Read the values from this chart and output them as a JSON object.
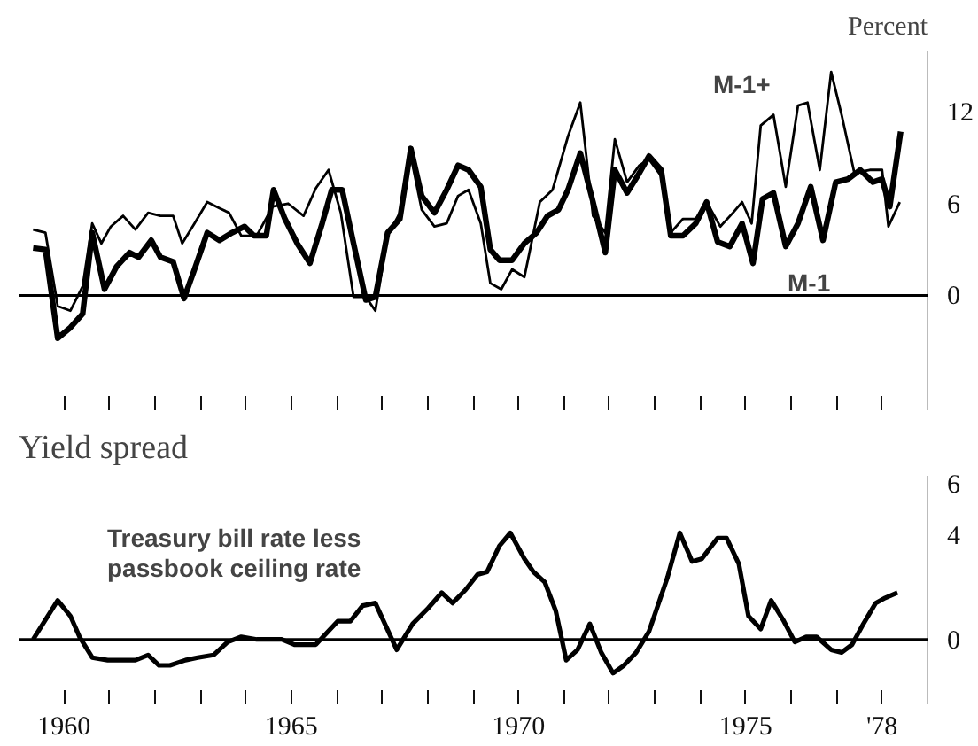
{
  "chart_data": [
    {
      "type": "line",
      "ylabel": "Percent",
      "tick_labels": "y",
      "xlim": [
        1959,
        1979
      ],
      "ylim": [
        -7.5,
        16
      ],
      "xticks": [
        {
          "value": 1960,
          "label": null
        },
        {
          "value": 1961,
          "label": null
        },
        {
          "value": 1962,
          "label": null
        },
        {
          "value": 1963,
          "label": null
        },
        {
          "value": 1964,
          "label": null
        },
        {
          "value": 1965,
          "label": null
        },
        {
          "value": 1966,
          "label": null
        },
        {
          "value": 1967,
          "label": null
        },
        {
          "value": 1968,
          "label": null
        },
        {
          "value": 1969,
          "label": null
        },
        {
          "value": 1970,
          "label": null
        },
        {
          "value": 1971,
          "label": null
        },
        {
          "value": 1972,
          "label": null
        },
        {
          "value": 1973,
          "label": null
        },
        {
          "value": 1974,
          "label": null
        },
        {
          "value": 1975,
          "label": null
        },
        {
          "value": 1976,
          "label": null
        },
        {
          "value": 1977,
          "label": null
        },
        {
          "value": 1978,
          "label": null
        }
      ],
      "yticks": [
        0,
        6,
        12
      ],
      "ref_lines": [
        {
          "axis": "y",
          "value": 0
        }
      ],
      "annotations": [
        "M-1+",
        "M-1"
      ],
      "series": [
        {
          "color": "#000000",
          "x": [
            1959.32,
            1959.59,
            1959.86,
            1960.14,
            1960.41,
            1960.62,
            1960.82,
            1961.03,
            1961.3,
            1961.57,
            1961.85,
            1962.12,
            1962.4,
            1962.6,
            1962.87,
            1963.15,
            1963.42,
            1963.63,
            1963.9,
            1964.24,
            1964.59,
            1964.93,
            1965.27,
            1965.54,
            1965.82,
            1966.09,
            1966.37,
            1966.64,
            1966.85,
            1967.12,
            1967.39,
            1967.63,
            1967.87,
            1968.15,
            1968.42,
            1968.67,
            1968.9,
            1969.17,
            1969.38,
            1969.62,
            1969.86,
            1970.13,
            1970.47,
            1970.75,
            1971.09,
            1971.36,
            1971.64,
            1971.91,
            1972.12,
            1972.39,
            1972.66,
            1972.87,
            1973.14,
            1973.35,
            1973.62,
            1973.9,
            1974.14,
            1974.44,
            1974.72,
            1974.92,
            1975.13,
            1975.33,
            1975.61,
            1975.88,
            1976.15,
            1976.36,
            1976.63,
            1976.88,
            1977.11,
            1977.39,
            1977.73,
            1978.0,
            1978.14,
            1978.39
          ],
          "values": [
            4.3,
            4.1,
            -0.7,
            -1.0,
            0.6,
            4.7,
            3.4,
            4.5,
            5.2,
            4.3,
            5.4,
            5.2,
            5.2,
            3.4,
            4.7,
            6.1,
            5.7,
            5.4,
            3.9,
            3.9,
            5.8,
            6.0,
            5.2,
            7.0,
            8.2,
            5.4,
            -0.1,
            -0.1,
            -1.0,
            3.9,
            5.4,
            9.1,
            5.6,
            4.5,
            4.7,
            6.5,
            6.9,
            4.7,
            0.8,
            0.4,
            1.7,
            1.2,
            6.1,
            6.9,
            10.4,
            12.6,
            5.2,
            4.1,
            10.2,
            7.4,
            8.5,
            8.9,
            7.8,
            4.1,
            5.0,
            5.0,
            6.1,
            4.5,
            5.4,
            6.1,
            4.7,
            11.1,
            11.8,
            7.1,
            12.4,
            12.6,
            8.2,
            14.6,
            11.8,
            8.0,
            8.2,
            8.2,
            4.5,
            6.1
          ]
        },
        {
          "color": "#000000",
          "x": [
            1959.32,
            1959.59,
            1959.86,
            1960.14,
            1960.41,
            1960.62,
            1960.89,
            1961.16,
            1961.44,
            1961.64,
            1961.92,
            1962.12,
            1962.4,
            1962.64,
            1962.87,
            1963.15,
            1963.42,
            1963.7,
            1963.97,
            1964.18,
            1964.45,
            1964.61,
            1964.86,
            1965.13,
            1965.41,
            1965.68,
            1965.89,
            1966.12,
            1966.37,
            1966.64,
            1966.85,
            1967.12,
            1967.39,
            1967.63,
            1967.87,
            1968.15,
            1968.42,
            1968.67,
            1968.9,
            1969.17,
            1969.38,
            1969.58,
            1969.86,
            1970.13,
            1970.4,
            1970.64,
            1970.88,
            1971.09,
            1971.36,
            1971.64,
            1971.91,
            1972.12,
            1972.39,
            1972.66,
            1972.87,
            1973.14,
            1973.35,
            1973.62,
            1973.9,
            1974.14,
            1974.38,
            1974.65,
            1974.92,
            1975.16,
            1975.37,
            1975.61,
            1975.88,
            1976.15,
            1976.43,
            1976.7,
            1976.98,
            1977.25,
            1977.52,
            1977.8,
            1978.0,
            1978.17,
            1978.41
          ],
          "values": [
            3.1,
            3.0,
            -2.8,
            -2.1,
            -1.2,
            4.1,
            0.4,
            1.9,
            2.8,
            2.5,
            3.6,
            2.5,
            2.2,
            -0.2,
            1.7,
            4.1,
            3.6,
            4.1,
            4.5,
            3.9,
            3.9,
            6.9,
            5.0,
            3.4,
            2.1,
            4.7,
            6.9,
            6.9,
            3.4,
            -0.3,
            -0.1,
            4.1,
            5.0,
            9.6,
            6.5,
            5.4,
            6.9,
            8.5,
            8.2,
            7.1,
            3.0,
            2.3,
            2.3,
            3.4,
            4.1,
            5.2,
            5.6,
            6.9,
            9.3,
            6.1,
            2.8,
            8.2,
            6.7,
            8.0,
            9.1,
            8.2,
            3.9,
            3.9,
            4.7,
            6.1,
            3.5,
            3.2,
            4.7,
            2.1,
            6.3,
            6.7,
            3.2,
            4.7,
            7.1,
            3.6,
            7.4,
            7.6,
            8.2,
            7.4,
            7.6,
            5.8,
            10.7
          ]
        }
      ]
    },
    {
      "type": "line",
      "title": "Yield spread",
      "xlim": [
        1959,
        1979
      ],
      "ylim": [
        -2.5,
        6.3
      ],
      "xticks": [
        {
          "value": 1960,
          "label": "1960"
        },
        {
          "value": 1961,
          "label": null
        },
        {
          "value": 1962,
          "label": null
        },
        {
          "value": 1963,
          "label": null
        },
        {
          "value": 1964,
          "label": null
        },
        {
          "value": 1965,
          "label": "1965"
        },
        {
          "value": 1966,
          "label": null
        },
        {
          "value": 1967,
          "label": null
        },
        {
          "value": 1968,
          "label": null
        },
        {
          "value": 1969,
          "label": null
        },
        {
          "value": 1970,
          "label": "1970"
        },
        {
          "value": 1971,
          "label": null
        },
        {
          "value": 1972,
          "label": null
        },
        {
          "value": 1973,
          "label": null
        },
        {
          "value": 1974,
          "label": null
        },
        {
          "value": 1975,
          "label": "1975"
        },
        {
          "value": 1976,
          "label": null
        },
        {
          "value": 1977,
          "label": null
        },
        {
          "value": 1978,
          "label": "'78"
        }
      ],
      "yticks": [
        0,
        4,
        6
      ],
      "ref_lines": [
        {
          "axis": "y",
          "value": 0
        }
      ],
      "annotations": [
        "Treasury bill rate less\npassbook ceiling rate"
      ],
      "series": [
        {
          "color": "#000000",
          "x": [
            1959.32,
            1959.86,
            1960.14,
            1960.34,
            1960.62,
            1960.96,
            1961.3,
            1961.57,
            1961.85,
            1962.09,
            1962.33,
            1962.67,
            1962.94,
            1963.29,
            1963.6,
            1963.9,
            1964.24,
            1964.79,
            1965.07,
            1965.54,
            1966.02,
            1966.3,
            1966.57,
            1966.85,
            1967.32,
            1967.67,
            1968.01,
            1968.31,
            1968.55,
            1968.83,
            1969.1,
            1969.31,
            1969.58,
            1969.82,
            1970.13,
            1970.33,
            1970.58,
            1970.82,
            1971.05,
            1971.3,
            1971.57,
            1971.82,
            1972.08,
            1972.32,
            1972.59,
            1972.87,
            1973.28,
            1973.55,
            1973.82,
            1974.03,
            1974.38,
            1974.58,
            1974.85,
            1975.06,
            1975.33,
            1975.56,
            1975.84,
            1976.08,
            1976.33,
            1976.56,
            1976.88,
            1977.11,
            1977.34,
            1977.59,
            1977.86,
            1978.07,
            1978.34
          ],
          "values": [
            0.0,
            1.5,
            0.9,
            0.1,
            -0.7,
            -0.8,
            -0.8,
            -0.8,
            -0.6,
            -1.0,
            -1.0,
            -0.8,
            -0.7,
            -0.6,
            -0.1,
            0.1,
            0.0,
            0.0,
            -0.2,
            -0.2,
            0.7,
            0.7,
            1.3,
            1.4,
            -0.4,
            0.6,
            1.2,
            1.8,
            1.4,
            1.9,
            2.5,
            2.6,
            3.6,
            4.1,
            3.1,
            2.6,
            2.2,
            1.1,
            -0.8,
            -0.4,
            0.6,
            -0.5,
            -1.3,
            -1.0,
            -0.5,
            0.3,
            2.4,
            4.1,
            3.0,
            3.1,
            3.9,
            3.9,
            2.9,
            0.9,
            0.4,
            1.5,
            0.7,
            -0.1,
            0.1,
            0.1,
            -0.4,
            -0.5,
            -0.2,
            0.6,
            1.4,
            1.6,
            1.8
          ]
        }
      ]
    }
  ]
}
